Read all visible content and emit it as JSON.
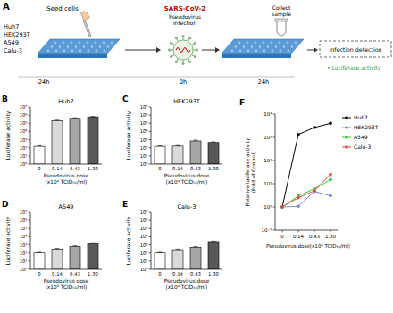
{
  "diagram": {
    "panel_label": "A",
    "seed_label": "Seed cells",
    "cell_lines": [
      "Huh7",
      "HEK293T",
      "A549",
      "Calu-3"
    ],
    "virus_label": "SARS-CoV-2",
    "infection_label": "Pseudovirus\ninfection",
    "collect_label": "Collect\nsample",
    "detection_label": "Infection detection",
    "readout": "• Luciferase activity",
    "times": [
      "-24h",
      "0h",
      "24h"
    ]
  },
  "chart_data": [
    {
      "type": "bar",
      "panel_label": "B",
      "title": "Huh7",
      "y_label": "Luciferase activity",
      "x_label": "Pseudovirus dose\n(x10⁴ TCID₅₀/ml)",
      "categories": [
        "0",
        "0.14",
        "0.43",
        "1.30"
      ],
      "values": [
        150,
        200000,
        400000,
        600000
      ],
      "errors": [
        30,
        40000,
        60000,
        80000
      ],
      "colors": [
        "#ffffff",
        "#d9d9d9",
        "#a6a6a6",
        "#595959"
      ],
      "log": "y",
      "grid": false,
      "ylim": [
        1,
        10000000
      ],
      "yticks": [
        {
          "value": 1,
          "label": "10⁰"
        },
        {
          "value": 10,
          "label": "10¹"
        },
        {
          "value": 100,
          "label": "10²"
        },
        {
          "value": 1000,
          "label": "10³"
        },
        {
          "value": 10000,
          "label": "10⁴"
        },
        {
          "value": 100000,
          "label": "10⁵"
        },
        {
          "value": 1000000,
          "label": "10⁶"
        },
        {
          "value": 10000000,
          "label": "10⁷"
        }
      ]
    },
    {
      "type": "bar",
      "panel_label": "C",
      "title": "HEK293T",
      "y_label": "Luciferase activity",
      "x_label": "Pseudovirus dose\n(x10⁴ TCID₅₀/ml)",
      "categories": [
        "0",
        "0.14",
        "0.43",
        "1.30"
      ],
      "values": [
        150,
        160,
        700,
        450
      ],
      "errors": [
        20,
        30,
        200,
        80
      ],
      "colors": [
        "#ffffff",
        "#d9d9d9",
        "#a6a6a6",
        "#595959"
      ],
      "log": "y",
      "grid": false,
      "ylim": [
        1,
        10000000
      ],
      "yticks": [
        {
          "value": 1,
          "label": "10⁰"
        },
        {
          "value": 10,
          "label": "10¹"
        },
        {
          "value": 100,
          "label": "10²"
        },
        {
          "value": 1000,
          "label": "10³"
        },
        {
          "value": 10000,
          "label": "10⁴"
        },
        {
          "value": 100000,
          "label": "10⁵"
        },
        {
          "value": 1000000,
          "label": "10⁶"
        },
        {
          "value": 10000000,
          "label": "10⁷"
        }
      ]
    },
    {
      "type": "bar",
      "panel_label": "D",
      "title": "A549",
      "y_label": "Luciferase activity",
      "x_label": "Pseudovirus dose\n(x10⁴ TCID₅₀/ml)",
      "categories": [
        "0",
        "0.14",
        "0.43",
        "1.30"
      ],
      "values": [
        100,
        300,
        600,
        1500
      ],
      "errors": [
        20,
        60,
        150,
        300
      ],
      "colors": [
        "#ffffff",
        "#d9d9d9",
        "#a6a6a6",
        "#595959"
      ],
      "log": "y",
      "grid": false,
      "ylim": [
        1,
        10000000
      ],
      "yticks": [
        {
          "value": 1,
          "label": "10⁰"
        },
        {
          "value": 10,
          "label": "10¹"
        },
        {
          "value": 100,
          "label": "10²"
        },
        {
          "value": 1000,
          "label": "10³"
        },
        {
          "value": 10000,
          "label": "10⁴"
        },
        {
          "value": 100000,
          "label": "10⁵"
        },
        {
          "value": 1000000,
          "label": "10⁶"
        },
        {
          "value": 10000000,
          "label": "10⁷"
        }
      ]
    },
    {
      "type": "bar",
      "panel_label": "E",
      "title": "Calu-3",
      "y_label": "Luciferase activity",
      "x_label": "Pseudovirus dose\n(x10⁴ TCID₅₀/ml)",
      "categories": [
        "0",
        "0.14",
        "0.43",
        "1.30"
      ],
      "values": [
        100,
        250,
        500,
        2500
      ],
      "errors": [
        20,
        50,
        100,
        400
      ],
      "colors": [
        "#ffffff",
        "#d9d9d9",
        "#a6a6a6",
        "#595959"
      ],
      "log": "y",
      "grid": false,
      "ylim": [
        1,
        10000000
      ],
      "yticks": [
        {
          "value": 1,
          "label": "10⁰"
        },
        {
          "value": 10,
          "label": "10¹"
        },
        {
          "value": 100,
          "label": "10²"
        },
        {
          "value": 1000,
          "label": "10³"
        },
        {
          "value": 10000,
          "label": "10⁴"
        },
        {
          "value": 100000,
          "label": "10⁵"
        },
        {
          "value": 1000000,
          "label": "10⁶"
        },
        {
          "value": 10000000,
          "label": "10⁷"
        }
      ]
    },
    {
      "type": "line",
      "panel_label": "F",
      "y_label": "Relative luciferase activity\n(Fold of Control)",
      "x_label": "Pseudovirus dose(x10⁴ TCID₅₀/ml)",
      "categories": [
        "0",
        "0.14",
        "0.43",
        "1.30"
      ],
      "series": [
        {
          "name": "Huh7",
          "color": "#000000",
          "marker": "circle",
          "values": [
            1,
            1333,
            2667,
            4000
          ]
        },
        {
          "name": "HEK293T",
          "color": "#6a8fe0",
          "marker": "circle",
          "values": [
            1,
            1.07,
            4.67,
            3
          ]
        },
        {
          "name": "A549",
          "color": "#3ec93e",
          "marker": "circle",
          "values": [
            1,
            3,
            6,
            15
          ]
        },
        {
          "name": "Calu-3",
          "color": "#e04b3a",
          "marker": "circle",
          "values": [
            1,
            2.5,
            5,
            25
          ]
        }
      ],
      "log": "y",
      "grid": false,
      "legend": "upper right",
      "ylim": [
        0.1,
        10000
      ],
      "yticks": [
        {
          "value": 0.1,
          "label": "10⁻¹"
        },
        {
          "value": 1,
          "label": "10⁰"
        },
        {
          "value": 10,
          "label": "10¹"
        },
        {
          "value": 100,
          "label": "10²"
        },
        {
          "value": 1000,
          "label": "10³"
        },
        {
          "value": 10000,
          "label": "10⁴"
        }
      ]
    }
  ]
}
